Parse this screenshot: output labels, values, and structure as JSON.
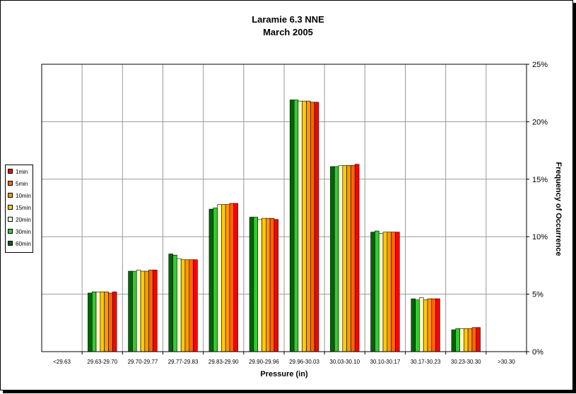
{
  "chart_data": {
    "type": "bar",
    "title": "Laramie 6.3 NNE",
    "subtitle": "March 2005",
    "xlabel": "Pressure (in)",
    "ylabel": "Frequency of Occurrence",
    "ylim": [
      0,
      25
    ],
    "ytick_values": [
      0,
      5,
      10,
      15,
      20,
      25
    ],
    "ytick_labels": [
      "0%",
      "5%",
      "10%",
      "15%",
      "20%",
      "25%"
    ],
    "grid": true,
    "legend_position": "left",
    "categories": [
      "<29.63",
      "29.63-29.70",
      "29.70-29.77",
      "29.77-29.83",
      "29.83-29.90",
      "29.90-29.96",
      "29.96-30.03",
      "30.03-30.10",
      "30.10-30.17",
      "30.17-30.23",
      "30.23-30.30",
      ">30.30"
    ],
    "series": [
      {
        "name": "60min",
        "color": "#006600",
        "values": [
          0,
          5.1,
          7.0,
          8.5,
          12.4,
          11.7,
          21.9,
          16.1,
          10.4,
          4.6,
          1.9,
          0
        ]
      },
      {
        "name": "30min",
        "color": "#33cc33",
        "values": [
          0,
          5.2,
          7.0,
          8.4,
          12.5,
          11.7,
          21.9,
          16.1,
          10.5,
          4.5,
          2.0,
          0
        ]
      },
      {
        "name": "20min",
        "color": "#ffffcc",
        "values": [
          0,
          5.2,
          7.1,
          8.1,
          12.8,
          11.5,
          21.8,
          16.2,
          10.3,
          4.7,
          2.0,
          0
        ]
      },
      {
        "name": "15min",
        "color": "#ffcc00",
        "values": [
          0,
          5.2,
          7.0,
          8.0,
          12.8,
          11.6,
          21.8,
          16.2,
          10.4,
          4.5,
          2.0,
          0
        ]
      },
      {
        "name": "10min",
        "color": "#ff9900",
        "values": [
          0,
          5.2,
          7.0,
          8.0,
          12.8,
          11.6,
          21.8,
          16.2,
          10.4,
          4.6,
          2.0,
          0
        ]
      },
      {
        "name": "5min",
        "color": "#ff6600",
        "values": [
          0,
          5.1,
          7.1,
          8.0,
          12.9,
          11.6,
          21.7,
          16.2,
          10.4,
          4.6,
          2.1,
          0
        ]
      },
      {
        "name": "1min",
        "color": "#ff0000",
        "values": [
          0,
          5.2,
          7.1,
          8.0,
          12.9,
          11.5,
          21.7,
          16.3,
          10.4,
          4.6,
          2.1,
          0
        ]
      }
    ],
    "legend_order": [
      "1min",
      "5min",
      "10min",
      "15min",
      "20min",
      "30min",
      "60min"
    ]
  }
}
